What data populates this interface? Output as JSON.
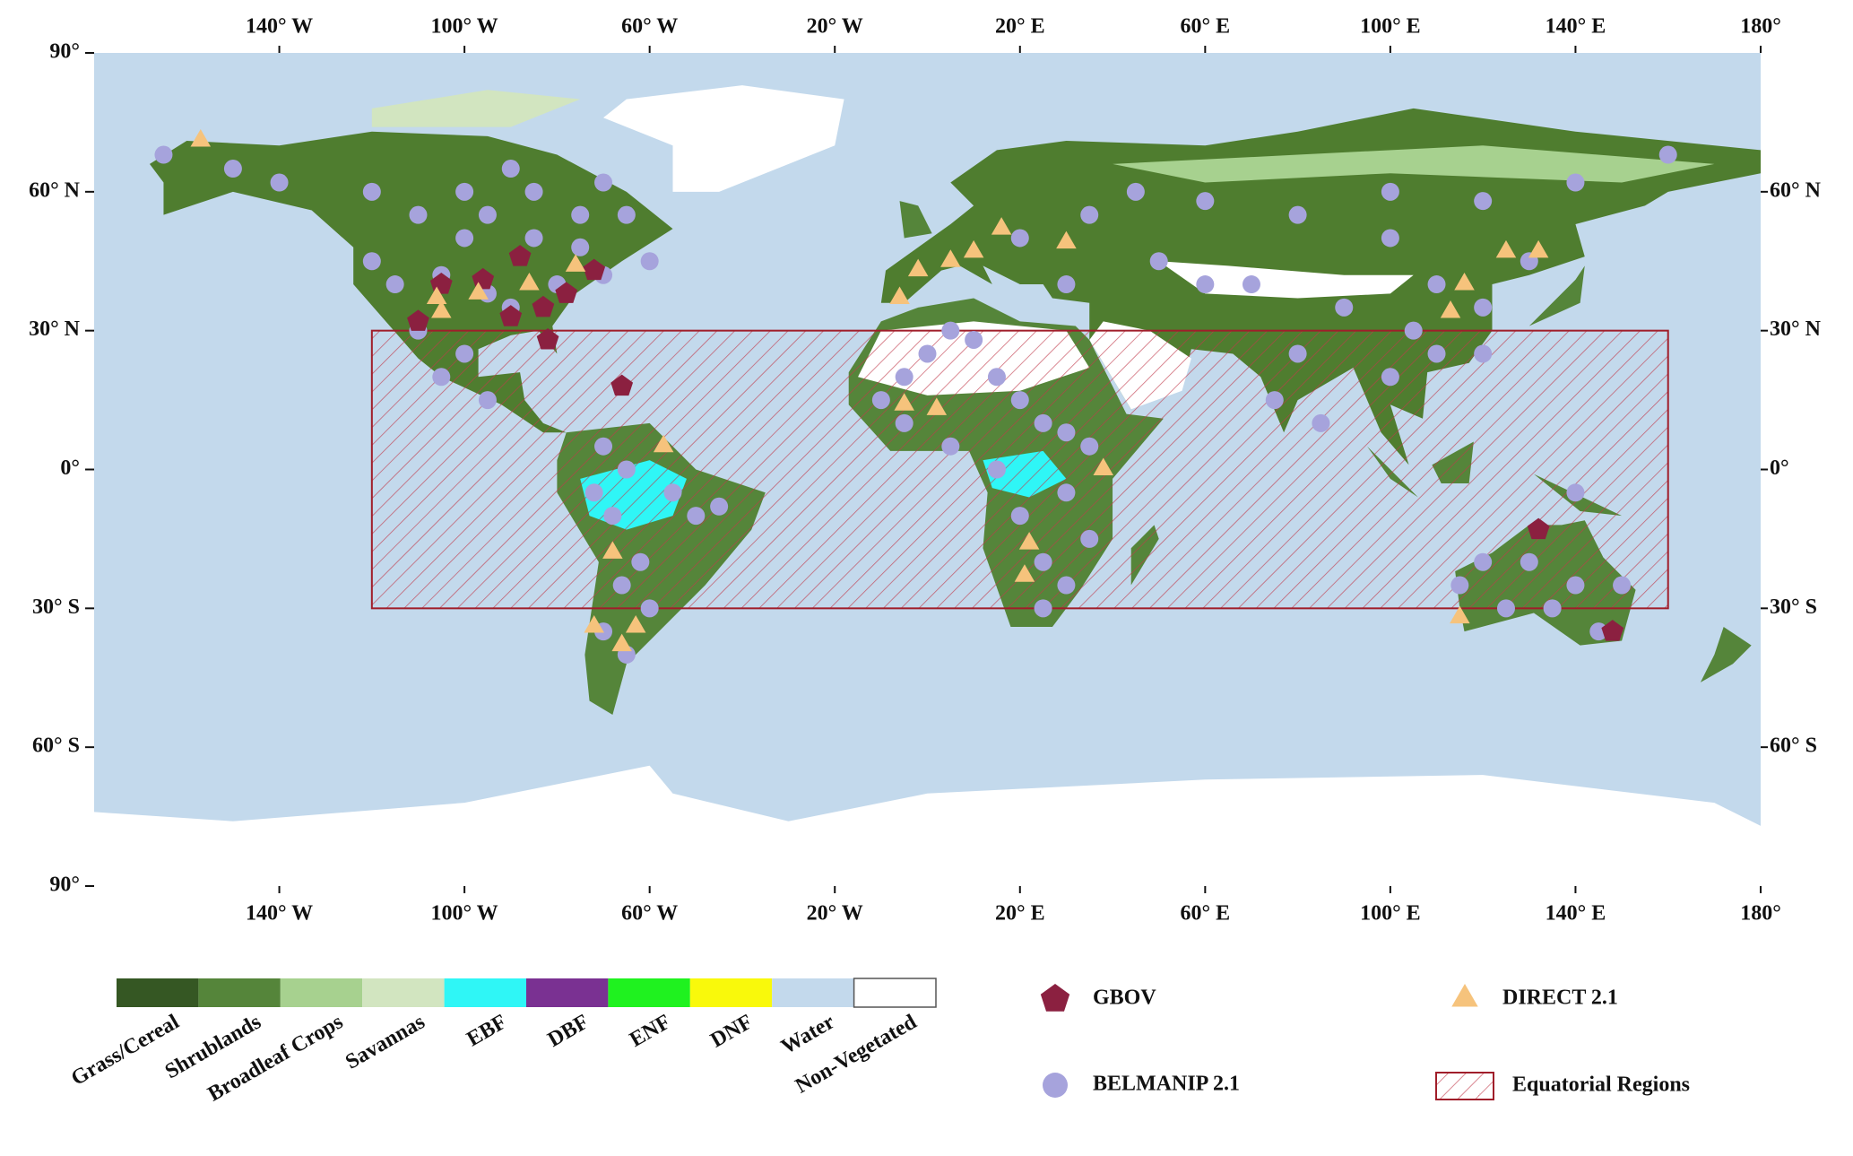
{
  "map": {
    "xlim": [
      -180,
      180
    ],
    "ylim": [
      -90,
      90
    ],
    "xticks": [
      {
        "value": -140,
        "label": "140° W"
      },
      {
        "value": -100,
        "label": "100° W"
      },
      {
        "value": -60,
        "label": "60° W"
      },
      {
        "value": -20,
        "label": "20° W"
      },
      {
        "value": 20,
        "label": "20° E"
      },
      {
        "value": 60,
        "label": "60° E"
      },
      {
        "value": 100,
        "label": "100° E"
      },
      {
        "value": 140,
        "label": "140° E"
      },
      {
        "value": 180,
        "label": "180°"
      }
    ],
    "yticks": [
      {
        "value": 90,
        "label": "90°"
      },
      {
        "value": 60,
        "label": "60° N"
      },
      {
        "value": 30,
        "label": "30° N"
      },
      {
        "value": 0,
        "label": "0°"
      },
      {
        "value": -30,
        "label": "30° S"
      },
      {
        "value": -60,
        "label": "60° S"
      },
      {
        "value": -90,
        "label": "90°"
      }
    ],
    "right_yticks": [
      {
        "value": 60,
        "label": "60° N"
      },
      {
        "value": 30,
        "label": "30° N"
      },
      {
        "value": 0,
        "label": "0°"
      },
      {
        "value": -30,
        "label": "30° S"
      },
      {
        "value": -60,
        "label": "60° S"
      }
    ],
    "land_cover": [
      {
        "name": "Grass/Cereal",
        "color": "#355723"
      },
      {
        "name": "Shrublands",
        "color": "#55853a"
      },
      {
        "name": "Broadleaf Crops",
        "color": "#a7d18f"
      },
      {
        "name": "Savannas",
        "color": "#d2e5c0"
      },
      {
        "name": "EBF",
        "color": "#2ff6f6"
      },
      {
        "name": "DBF",
        "color": "#7a3192"
      },
      {
        "name": "ENF",
        "color": "#1ff21f"
      },
      {
        "name": "DNF",
        "color": "#f9f90b"
      },
      {
        "name": "Water",
        "color": "#c3d9ec"
      },
      {
        "name": "Non-Vegetated",
        "color": "#ffffff"
      }
    ],
    "equatorial_region": {
      "name": "Equatorial Regions",
      "color": "#a01e2a",
      "lon": [
        -120,
        160
      ],
      "lat": [
        -30,
        30
      ]
    },
    "sites": [
      {
        "name": "BELMANIP 2.1",
        "color": "#a6a3dc",
        "shape": "circle",
        "lon": [
          -165,
          -150,
          -140,
          -120,
          -110,
          -100,
          -95,
          -85,
          -75,
          -120,
          -115,
          -105,
          -95,
          -90,
          -80,
          -70,
          -110,
          -100,
          -105,
          -95,
          -100,
          -90,
          -85,
          -75,
          -70,
          -65,
          -60,
          -55,
          -50,
          -45,
          -62,
          -66,
          -60,
          -65,
          -70,
          -68,
          -65,
          -70,
          -72,
          -10,
          -5,
          0,
          5,
          10,
          15,
          20,
          25,
          30,
          35,
          30,
          -5,
          5,
          15,
          20,
          25,
          30,
          35,
          25,
          30,
          20,
          35,
          45,
          60,
          80,
          100,
          120,
          140,
          160,
          50,
          70,
          90,
          110,
          130,
          60,
          80,
          100,
          120,
          75,
          85,
          105,
          110,
          120,
          100,
          140,
          130,
          135,
          150,
          145,
          125,
          120,
          115,
          140
        ],
        "lat": [
          68,
          65,
          62,
          60,
          55,
          50,
          55,
          50,
          48,
          45,
          40,
          42,
          38,
          35,
          40,
          42,
          30,
          25,
          20,
          15,
          60,
          65,
          60,
          55,
          62,
          55,
          45,
          -5,
          -10,
          -8,
          -20,
          -25,
          -30,
          -40,
          -35,
          -10,
          0,
          5,
          -5,
          15,
          20,
          25,
          30,
          28,
          20,
          15,
          10,
          8,
          5,
          -5,
          10,
          5,
          0,
          -10,
          -20,
          -25,
          -15,
          -30,
          40,
          50,
          55,
          60,
          58,
          55,
          60,
          58,
          62,
          68,
          45,
          40,
          35,
          40,
          45,
          40,
          25,
          20,
          25,
          15,
          10,
          30,
          25,
          35,
          50,
          -25,
          -20,
          -30,
          -25,
          -35,
          -30,
          -20,
          -25,
          -5
        ],
        "lon2": []
      },
      {
        "name": "GBOV",
        "color": "#8b2040",
        "shape": "pentagon",
        "lon": [
          -105,
          -88,
          -83,
          -72,
          -96,
          -78,
          -82,
          -66,
          -110,
          -90,
          132,
          148
        ],
        "lat": [
          40,
          46,
          35,
          43,
          41,
          38,
          28,
          18,
          32,
          33,
          -13,
          -35
        ]
      },
      {
        "name": "DIRECT 2.1",
        "color": "#f6c37c",
        "shape": "triangle",
        "lon": [
          -157,
          -106,
          -97,
          -86,
          -76,
          -105,
          -57,
          -63,
          -66,
          -72,
          -68,
          5,
          -2,
          10,
          16,
          -6,
          2,
          -5,
          22,
          21,
          38,
          115,
          116,
          125,
          132,
          113,
          30
        ],
        "lat": [
          71,
          37,
          38,
          40,
          44,
          34,
          5,
          -34,
          -38,
          -34,
          -18,
          45,
          43,
          47,
          52,
          37,
          13,
          14,
          -16,
          -23,
          0,
          -32,
          40,
          47,
          47,
          34,
          49
        ]
      }
    ]
  }
}
